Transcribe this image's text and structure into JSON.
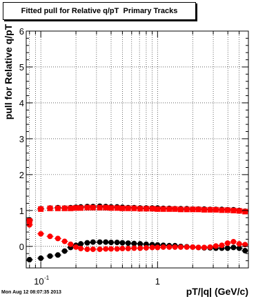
{
  "title": "Fitted pull for Relative q/pT  Primary Tracks",
  "timestamp": "Mon Aug 12 08:07:35 2013",
  "chart_data": {
    "type": "scatter",
    "title": "Fitted pull for Relative q/pT  Primary Tracks",
    "xlabel": "pT/|q| (GeV/c)",
    "ylabel": "pull for Relative q/pT",
    "x_scale": "log",
    "xlim": [
      0.075,
      6.0
    ],
    "ylim": [
      -0.6,
      6
    ],
    "x_ticks": [
      {
        "value": 0.1,
        "base": "10",
        "exp": "-1"
      },
      {
        "value": 1,
        "label": "1"
      }
    ],
    "y_ticks": [
      0,
      1,
      2,
      3,
      4,
      5,
      6
    ],
    "grid": true,
    "series": [
      {
        "color": "#000000",
        "marker": "circle",
        "x": [
          0.08,
          0.1,
          0.12,
          0.14,
          0.16,
          0.18,
          0.2,
          0.22,
          0.25,
          0.28,
          0.32,
          0.36,
          0.4,
          0.45,
          0.5,
          0.56,
          0.63,
          0.71,
          0.8,
          0.9,
          1.0,
          1.12,
          1.26,
          1.41,
          1.58,
          1.78,
          2.0,
          2.24,
          2.51,
          2.82,
          3.16,
          3.55,
          3.98,
          4.47,
          5.01,
          5.62
        ],
        "y": [
          0.74,
          1.05,
          1.07,
          1.08,
          1.07,
          1.08,
          1.09,
          1.1,
          1.11,
          1.11,
          1.12,
          1.11,
          1.1,
          1.1,
          1.09,
          1.08,
          1.08,
          1.07,
          1.07,
          1.07,
          1.07,
          1.06,
          1.06,
          1.05,
          1.05,
          1.05,
          1.04,
          1.04,
          1.04,
          1.03,
          1.03,
          1.03,
          1.02,
          1.02,
          1.0,
          0.98
        ],
        "y2_note": "",
        "yerr": 0.03
      },
      {
        "color": "#000000",
        "marker": "circle",
        "x": [
          0.08,
          0.1,
          0.12,
          0.14,
          0.16,
          0.18,
          0.2,
          0.22,
          0.25,
          0.28,
          0.32,
          0.36,
          0.4,
          0.45,
          0.5,
          0.56,
          0.63,
          0.71,
          0.8,
          0.9,
          1.0,
          1.12,
          1.26,
          1.41,
          1.58,
          1.78,
          2.0,
          2.24,
          2.51,
          2.82,
          3.16,
          3.55,
          3.98,
          4.47,
          5.01,
          5.62
        ],
        "y": [
          -0.37,
          -0.33,
          -0.27,
          -0.24,
          -0.13,
          -0.03,
          0.03,
          0.07,
          0.1,
          0.12,
          0.12,
          0.12,
          0.11,
          0.11,
          0.1,
          0.09,
          0.08,
          0.07,
          0.06,
          0.05,
          0.04,
          0.03,
          0.02,
          0.02,
          0.0,
          -0.01,
          -0.02,
          -0.03,
          -0.04,
          -0.04,
          -0.05,
          -0.05,
          -0.05,
          -0.03,
          -0.05,
          -0.12
        ],
        "yerr": 0.03
      },
      {
        "color": "#ff0000",
        "marker": "square",
        "x": [
          0.08,
          0.1,
          0.12,
          0.14,
          0.16,
          0.18,
          0.2,
          0.22,
          0.25,
          0.28,
          0.32,
          0.36,
          0.4,
          0.45,
          0.5,
          0.56,
          0.63,
          0.71,
          0.8,
          0.9,
          1.0,
          1.12,
          1.26,
          1.41,
          1.58,
          1.78,
          2.0,
          2.24,
          2.51,
          2.82,
          3.16,
          3.55,
          3.98,
          4.47,
          5.01,
          5.62
        ],
        "y": [
          0.71,
          1.04,
          1.06,
          1.06,
          1.06,
          1.06,
          1.07,
          1.07,
          1.08,
          1.08,
          1.08,
          1.08,
          1.07,
          1.07,
          1.06,
          1.06,
          1.06,
          1.05,
          1.05,
          1.05,
          1.04,
          1.04,
          1.04,
          1.04,
          1.03,
          1.03,
          1.03,
          1.03,
          1.02,
          1.02,
          1.02,
          1.01,
          1.01,
          1.0,
          0.99,
          0.97
        ],
        "yerr": 0.03
      },
      {
        "color": "#ff0000",
        "marker": "circle",
        "x": [
          0.08,
          0.1,
          0.12,
          0.14,
          0.16,
          0.18,
          0.2,
          0.22,
          0.25,
          0.28,
          0.32,
          0.36,
          0.4,
          0.45,
          0.5,
          0.56,
          0.63,
          0.71,
          0.8,
          0.9,
          1.0,
          1.12,
          1.26,
          1.41,
          1.58,
          1.78,
          2.0,
          2.24,
          2.51,
          2.82,
          3.16,
          3.55,
          3.98,
          4.47,
          5.01,
          5.62
        ],
        "y": [
          0.6,
          0.35,
          0.28,
          0.22,
          0.14,
          0.06,
          -0.02,
          -0.06,
          -0.08,
          -0.08,
          -0.08,
          -0.07,
          -0.07,
          -0.07,
          -0.06,
          -0.06,
          -0.05,
          -0.05,
          -0.04,
          -0.03,
          -0.03,
          -0.02,
          -0.02,
          -0.02,
          -0.02,
          -0.02,
          -0.02,
          -0.03,
          -0.03,
          -0.02,
          0.01,
          0.03,
          0.09,
          0.13,
          0.07,
          0.05
        ],
        "yerr": 0.03
      }
    ]
  }
}
